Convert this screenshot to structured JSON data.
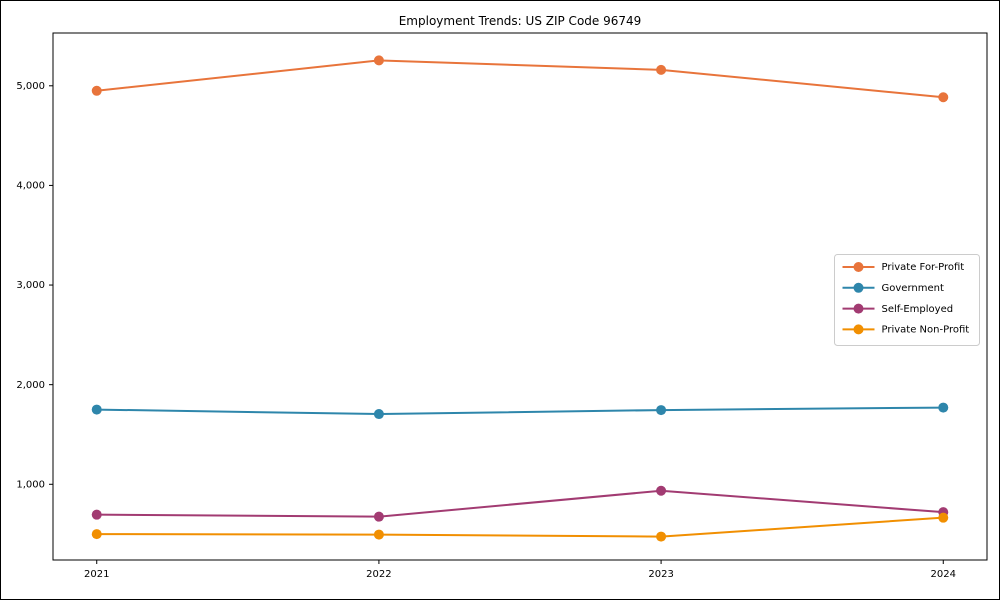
{
  "figure": {
    "background_color": "#ffffff",
    "border_color": "#000000"
  },
  "chart_data": {
    "type": "line",
    "title": "Employment Trends: US ZIP Code 96749",
    "xlabel": "",
    "ylabel": "",
    "x": [
      2021,
      2022,
      2023,
      2024
    ],
    "xtick_labels": [
      "2021",
      "2022",
      "2023",
      "2024"
    ],
    "yticks": [
      1000,
      2000,
      3000,
      4000,
      5000
    ],
    "ytick_labels": [
      "1,000",
      "2,000",
      "3,000",
      "4,000",
      "5,000"
    ],
    "xlim": [
      2020.845,
      2024.155
    ],
    "ylim": [
      240,
      5530
    ],
    "grid": false,
    "marker": "circle",
    "line_width": 2,
    "marker_radius": 5,
    "series": [
      {
        "name": "Private For-Profit",
        "color": "#E8743B",
        "values": [
          4950,
          5255,
          5160,
          4885
        ]
      },
      {
        "name": "Government",
        "color": "#2E86AB",
        "values": [
          1750,
          1705,
          1745,
          1770
        ]
      },
      {
        "name": "Self-Employed",
        "color": "#A23B72",
        "values": [
          695,
          675,
          935,
          720
        ]
      },
      {
        "name": "Private Non-Profit",
        "color": "#F18F01",
        "values": [
          500,
          495,
          475,
          665
        ]
      }
    ],
    "legend": {
      "position": "center right",
      "border_color": "#cccccc",
      "background_color": "#ffffff",
      "entries": [
        "Private For-Profit",
        "Government",
        "Self-Employed",
        "Private Non-Profit"
      ]
    }
  }
}
